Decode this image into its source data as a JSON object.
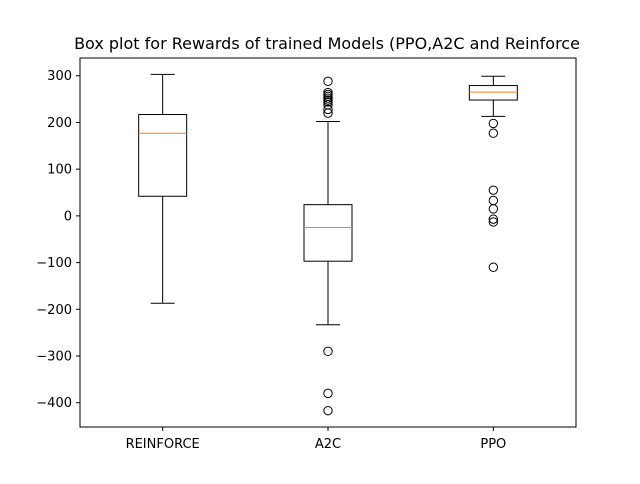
{
  "chart_data": {
    "type": "box",
    "title": "Box plot for Rewards of trained Models (PPO,A2C and Reinforce",
    "xlabel": "",
    "ylabel": "",
    "categories": [
      "REINFORCE",
      "A2C",
      "PPO"
    ],
    "yticks": [
      300,
      200,
      100,
      0,
      -100,
      -200,
      -300,
      -400
    ],
    "ylim": [
      -452,
      338
    ],
    "grid": false,
    "median_color": "#ff7f0e",
    "box_color": "#000000",
    "boxes": [
      {
        "label": "REINFORCE",
        "whisker_low": -187,
        "q1": 42,
        "median": 177,
        "q3": 217,
        "whisker_high": 303,
        "outliers": []
      },
      {
        "label": "A2C",
        "whisker_low": -233,
        "q1": -97,
        "median": -25,
        "q3": 24,
        "whisker_high": 202,
        "outliers": [
          -417,
          -380,
          -290,
          220,
          228,
          238,
          244,
          248,
          252,
          256,
          260,
          264,
          288
        ]
      },
      {
        "label": "PPO",
        "whisker_low": 213,
        "q1": 248,
        "median": 265,
        "q3": 279,
        "whisker_high": 299,
        "outliers": [
          -110,
          -13,
          -7,
          15,
          33,
          55,
          177,
          198
        ]
      }
    ]
  }
}
